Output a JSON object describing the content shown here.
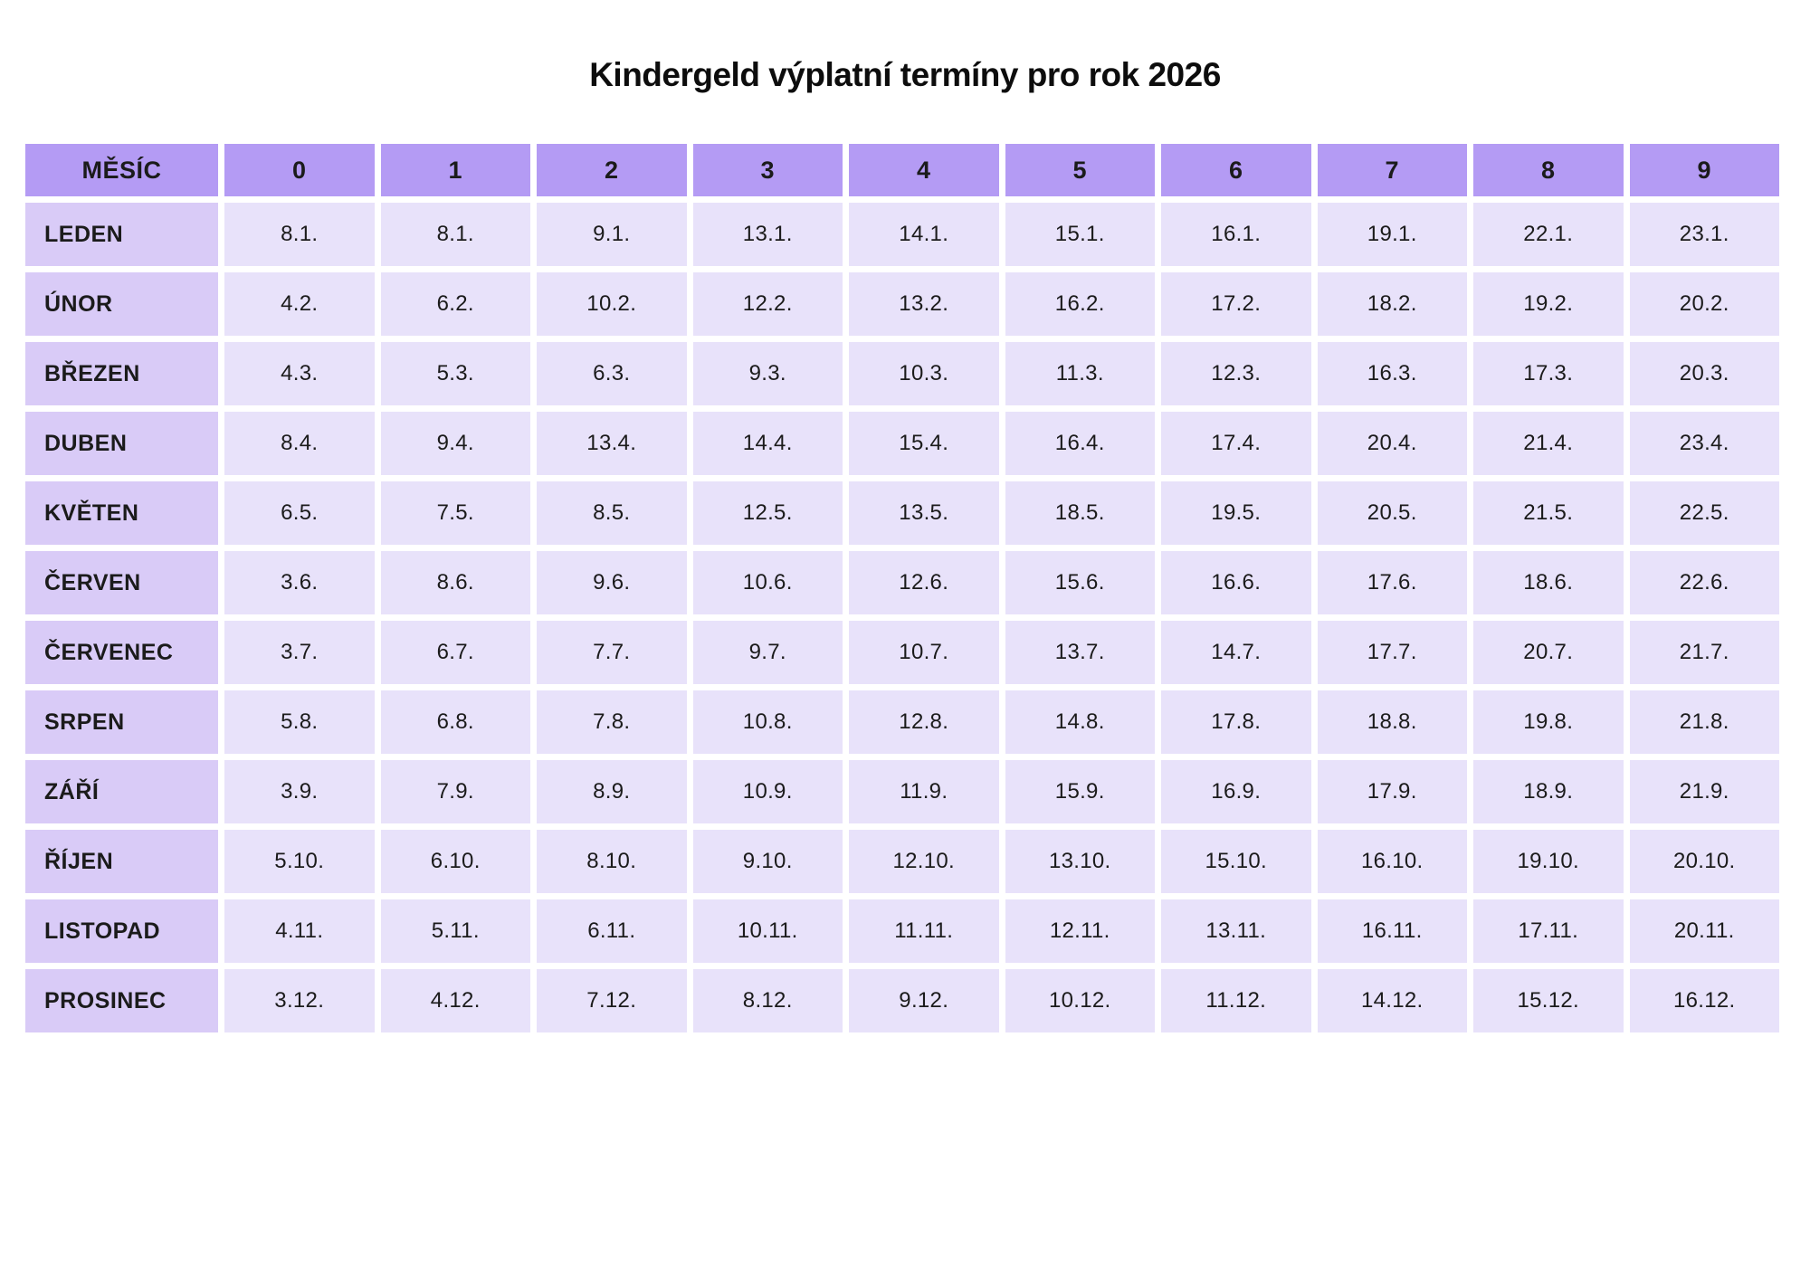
{
  "title": "Kindergeld výplatní termíny pro rok 2026",
  "colors": {
    "header_bg": "#b49bf4",
    "month_bg": "#d9cbf7",
    "cell_bg": "#e8e2fa",
    "text": "#1b1b1b",
    "page_bg": "#ffffff"
  },
  "chart_data": {
    "type": "table",
    "title": "Kindergeld výplatní termíny pro rok 2026",
    "columns": [
      "MĚSÍC",
      "0",
      "1",
      "2",
      "3",
      "4",
      "5",
      "6",
      "7",
      "8",
      "9"
    ],
    "rows": [
      {
        "month": "LEDEN",
        "dates": [
          "8.1.",
          "8.1.",
          "9.1.",
          "13.1.",
          "14.1.",
          "15.1.",
          "16.1.",
          "19.1.",
          "22.1.",
          "23.1."
        ]
      },
      {
        "month": "ÚNOR",
        "dates": [
          "4.2.",
          "6.2.",
          "10.2.",
          "12.2.",
          "13.2.",
          "16.2.",
          "17.2.",
          "18.2.",
          "19.2.",
          "20.2."
        ]
      },
      {
        "month": "BŘEZEN",
        "dates": [
          "4.3.",
          "5.3.",
          "6.3.",
          "9.3.",
          "10.3.",
          "11.3.",
          "12.3.",
          "16.3.",
          "17.3.",
          "20.3."
        ]
      },
      {
        "month": "DUBEN",
        "dates": [
          "8.4.",
          "9.4.",
          "13.4.",
          "14.4.",
          "15.4.",
          "16.4.",
          "17.4.",
          "20.4.",
          "21.4.",
          "23.4."
        ]
      },
      {
        "month": "KVĚTEN",
        "dates": [
          "6.5.",
          "7.5.",
          "8.5.",
          "12.5.",
          "13.5.",
          "18.5.",
          "19.5.",
          "20.5.",
          "21.5.",
          "22.5."
        ]
      },
      {
        "month": "ČERVEN",
        "dates": [
          "3.6.",
          "8.6.",
          "9.6.",
          "10.6.",
          "12.6.",
          "15.6.",
          "16.6.",
          "17.6.",
          "18.6.",
          "22.6."
        ]
      },
      {
        "month": "ČERVENEC",
        "dates": [
          "3.7.",
          "6.7.",
          "7.7.",
          "9.7.",
          "10.7.",
          "13.7.",
          "14.7.",
          "17.7.",
          "20.7.",
          "21.7."
        ]
      },
      {
        "month": "SRPEN",
        "dates": [
          "5.8.",
          "6.8.",
          "7.8.",
          "10.8.",
          "12.8.",
          "14.8.",
          "17.8.",
          "18.8.",
          "19.8.",
          "21.8."
        ]
      },
      {
        "month": "ZÁŘÍ",
        "dates": [
          "3.9.",
          "7.9.",
          "8.9.",
          "10.9.",
          "11.9.",
          "15.9.",
          "16.9.",
          "17.9.",
          "18.9.",
          "21.9."
        ]
      },
      {
        "month": "ŘÍJEN",
        "dates": [
          "5.10.",
          "6.10.",
          "8.10.",
          "9.10.",
          "12.10.",
          "13.10.",
          "15.10.",
          "16.10.",
          "19.10.",
          "20.10."
        ]
      },
      {
        "month": "LISTOPAD",
        "dates": [
          "4.11.",
          "5.11.",
          "6.11.",
          "10.11.",
          "11.11.",
          "12.11.",
          "13.11.",
          "16.11.",
          "17.11.",
          "20.11."
        ]
      },
      {
        "month": "PROSINEC",
        "dates": [
          "3.12.",
          "4.12.",
          "7.12.",
          "8.12.",
          "9.12.",
          "10.12.",
          "11.12.",
          "14.12.",
          "15.12.",
          "16.12."
        ]
      }
    ]
  }
}
